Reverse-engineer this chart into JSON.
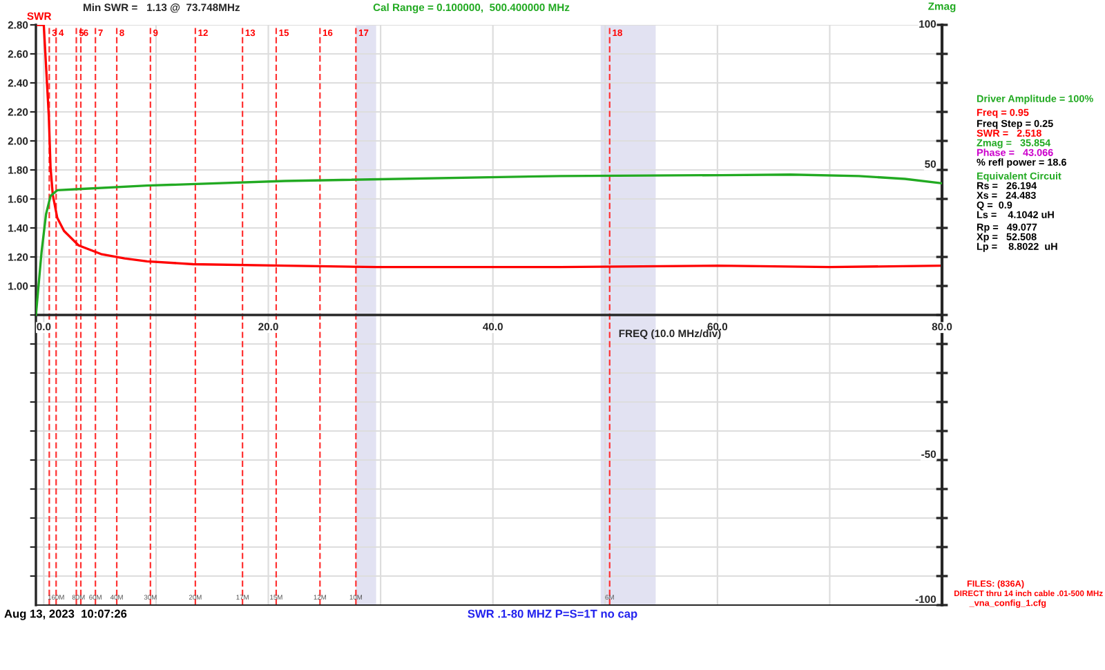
{
  "chart_data": {
    "type": "line",
    "title": "Min SWR =   1.13 @  73.748MHz",
    "subtitle": "Cal Range = 0.100000,  500.400000 MHz",
    "xlabel": "FREQ (10.0 MHz/div)",
    "ylabel": "SWR",
    "y2label": "Zmag",
    "series": [
      {
        "type": "line",
        "color": "#ff0000",
        "axis": "y",
        "x": [
          -0.6,
          0.0,
          0.2,
          0.45,
          0.6,
          0.8,
          1.2,
          1.8,
          3.1,
          5.1,
          7.2,
          9.2,
          13.3,
          21.5,
          29.7,
          46.0,
          60.0,
          70.0,
          80.0
        ],
        "values": [
          2.8,
          2.8,
          2.52,
          2.17,
          1.82,
          1.63,
          1.47,
          1.38,
          1.28,
          1.22,
          1.19,
          1.17,
          1.15,
          1.14,
          1.13,
          1.13,
          1.14,
          1.13,
          1.14
        ]
      },
      {
        "type": "line",
        "color": "#22aa22",
        "axis": "y2",
        "x": [
          -0.7,
          -0.2,
          0.2,
          0.6,
          1.2,
          3.1,
          9.2,
          21.5,
          46.0,
          60.4,
          66.5,
          72.6,
          76.7,
          80.0
        ],
        "values": [
          0,
          21.6,
          34.7,
          41,
          43,
          43.4,
          44.6,
          46.2,
          47.9,
          48.2,
          48.4,
          47.9,
          46.9,
          45.4
        ]
      }
    ],
    "xlim": [
      -0.7,
      80
    ],
    "xticks": [
      {
        "value": 0,
        "label": "0.0"
      },
      {
        "value": 10,
        "label": null
      },
      {
        "value": 20,
        "label": "20.0"
      },
      {
        "value": 30,
        "label": null
      },
      {
        "value": 40,
        "label": "40.0"
      },
      {
        "value": 50,
        "label": null
      },
      {
        "value": 60,
        "label": "60.0"
      },
      {
        "value": 70,
        "label": null
      },
      {
        "value": 80,
        "label": "80.0"
      }
    ],
    "ylim": [
      -1.2,
      2.8
    ],
    "yticks": [
      {
        "value": -1.0,
        "label": null
      },
      {
        "value": -0.8,
        "label": null
      },
      {
        "value": -0.6,
        "label": null
      },
      {
        "value": -0.4,
        "label": null
      },
      {
        "value": -0.2,
        "label": null
      },
      {
        "value": 0.0,
        "label": null
      },
      {
        "value": 0.2,
        "label": null
      },
      {
        "value": 0.4,
        "label": null
      },
      {
        "value": 0.6,
        "label": null
      },
      {
        "value": 0.8,
        "label": null
      },
      {
        "value": 1.0,
        "label": "1.00"
      },
      {
        "value": 1.2,
        "label": "1.20"
      },
      {
        "value": 1.4,
        "label": "1.40"
      },
      {
        "value": 1.6,
        "label": "1.60"
      },
      {
        "value": 1.8,
        "label": "1.80"
      },
      {
        "value": 2.0,
        "label": "2.00"
      },
      {
        "value": 2.2,
        "label": "2.20"
      },
      {
        "value": 2.4,
        "label": "2.40"
      },
      {
        "value": 2.6,
        "label": "2.60"
      },
      {
        "value": 2.8,
        "label": "2.80"
      }
    ],
    "y2lim": [
      -100,
      100
    ],
    "y2ticks": [
      {
        "value": -100,
        "label": "-100"
      },
      {
        "value": -90,
        "label": null
      },
      {
        "value": -80,
        "label": null
      },
      {
        "value": -70,
        "label": null
      },
      {
        "value": -60,
        "label": null
      },
      {
        "value": -50,
        "label": "-50"
      },
      {
        "value": -40,
        "label": null
      },
      {
        "value": -30,
        "label": null
      },
      {
        "value": -20,
        "label": null
      },
      {
        "value": -10,
        "label": null
      },
      {
        "value": 0,
        "label": null
      },
      {
        "value": 10,
        "label": null
      },
      {
        "value": 20,
        "label": null
      },
      {
        "value": 30,
        "label": null
      },
      {
        "value": 40,
        "label": null
      },
      {
        "value": 50,
        "label": "50"
      },
      {
        "value": 60,
        "label": null
      },
      {
        "value": 70,
        "label": null
      },
      {
        "value": 80,
        "label": null
      },
      {
        "value": 90,
        "label": null
      },
      {
        "value": 100,
        "label": "100"
      }
    ],
    "grid": true,
    "bands": [
      {
        "axis": "x",
        "from": 27.8,
        "to": 29.6,
        "label": null,
        "color": "#e2e2f2"
      },
      {
        "axis": "x",
        "from": 49.6,
        "to": 54.5,
        "label": null,
        "color": "#e2e2f2"
      }
    ],
    "ref_lines": [
      {
        "axis": "x",
        "value": 0.49,
        "color": "#ff3333",
        "line_style": "dashed"
      },
      {
        "axis": "x",
        "value": 1.1,
        "color": "#ff3333",
        "line_style": "dashed"
      },
      {
        "axis": "x",
        "value": 2.9,
        "color": "#ff3333",
        "line_style": "dashed"
      },
      {
        "axis": "x",
        "value": 3.3,
        "color": "#ff3333",
        "line_style": "dashed"
      },
      {
        "axis": "x",
        "value": 4.6,
        "color": "#ff3333",
        "line_style": "dashed"
      },
      {
        "axis": "x",
        "value": 6.5,
        "color": "#ff3333",
        "line_style": "dashed"
      },
      {
        "axis": "x",
        "value": 9.5,
        "color": "#ff3333",
        "line_style": "dashed"
      },
      {
        "axis": "x",
        "value": 13.5,
        "color": "#ff3333",
        "line_style": "dashed"
      },
      {
        "axis": "x",
        "value": 17.7,
        "color": "#ff3333",
        "line_style": "dashed"
      },
      {
        "axis": "x",
        "value": 20.7,
        "color": "#ff3333",
        "line_style": "dashed"
      },
      {
        "axis": "x",
        "value": 24.6,
        "color": "#ff3333",
        "line_style": "dashed"
      },
      {
        "axis": "x",
        "value": 27.8,
        "color": "#ff3333",
        "line_style": "dashed"
      },
      {
        "axis": "x",
        "value": 50.4,
        "color": "#ff3333",
        "line_style": "dashed"
      }
    ],
    "annotations": [
      "Aug 13, 2023  10:07:26",
      "SWR .1-80 MHZ P=S=1T no cap",
      "Driver Amplitude = 100%",
      "Freq = 0.95",
      "Freq Step = 0.25",
      "SWR =   2.518",
      "Zmag =   35.854",
      "Phase =   43.066",
      "% refl power = 18.6",
      "Equivalent Circuit",
      "Rs =   26.194",
      "Xs =   24.483",
      "Q =  0.9",
      "Ls =    4.1042 uH",
      "Rp =   49.077",
      "Xp =   52.508",
      "Lp =    8.8022  uH",
      "FILES: (836A)",
      " DIRECT thru 14 inch cable .01-500 MHz",
      " _vna_config_1.cfg",
      {
        "text": "3",
        "x": 0.49,
        "y": 2.74
      },
      {
        "text": "4",
        "x": 1.1,
        "y": 2.74
      },
      {
        "text": "5",
        "x": 2.9,
        "y": 2.74
      },
      {
        "text": "6",
        "x": 3.3,
        "y": 2.74
      },
      {
        "text": "7",
        "x": 4.6,
        "y": 2.74
      },
      {
        "text": "8",
        "x": 6.5,
        "y": 2.74
      },
      {
        "text": "9",
        "x": 9.5,
        "y": 2.74
      },
      {
        "text": "12",
        "x": 13.5,
        "y": 2.74
      },
      {
        "text": "13",
        "x": 17.7,
        "y": 2.74
      },
      {
        "text": "15",
        "x": 20.7,
        "y": 2.74
      },
      {
        "text": "16",
        "x": 24.6,
        "y": 2.74
      },
      {
        "text": "17",
        "x": 27.8,
        "y": 2.74
      },
      {
        "text": "18",
        "x": 50.4,
        "y": 2.74
      },
      {
        "text": "160M",
        "x": 1.1,
        "y": -1.15
      },
      {
        "text": "80M",
        "x": 3.1,
        "y": -1.15
      },
      {
        "text": "60M",
        "x": 4.6,
        "y": -1.15
      },
      {
        "text": "40M",
        "x": 6.5,
        "y": -1.15
      },
      {
        "text": "30M",
        "x": 9.5,
        "y": -1.15
      },
      {
        "text": "20M",
        "x": 13.5,
        "y": -1.15
      },
      {
        "text": "17M",
        "x": 17.7,
        "y": -1.15
      },
      {
        "text": "15M",
        "x": 20.7,
        "y": -1.15
      },
      {
        "text": "12M",
        "x": 24.6,
        "y": -1.15
      },
      {
        "text": "10M",
        "x": 27.8,
        "y": -1.15
      },
      {
        "text": "6M",
        "x": 50.4,
        "y": -1.15
      }
    ]
  }
}
